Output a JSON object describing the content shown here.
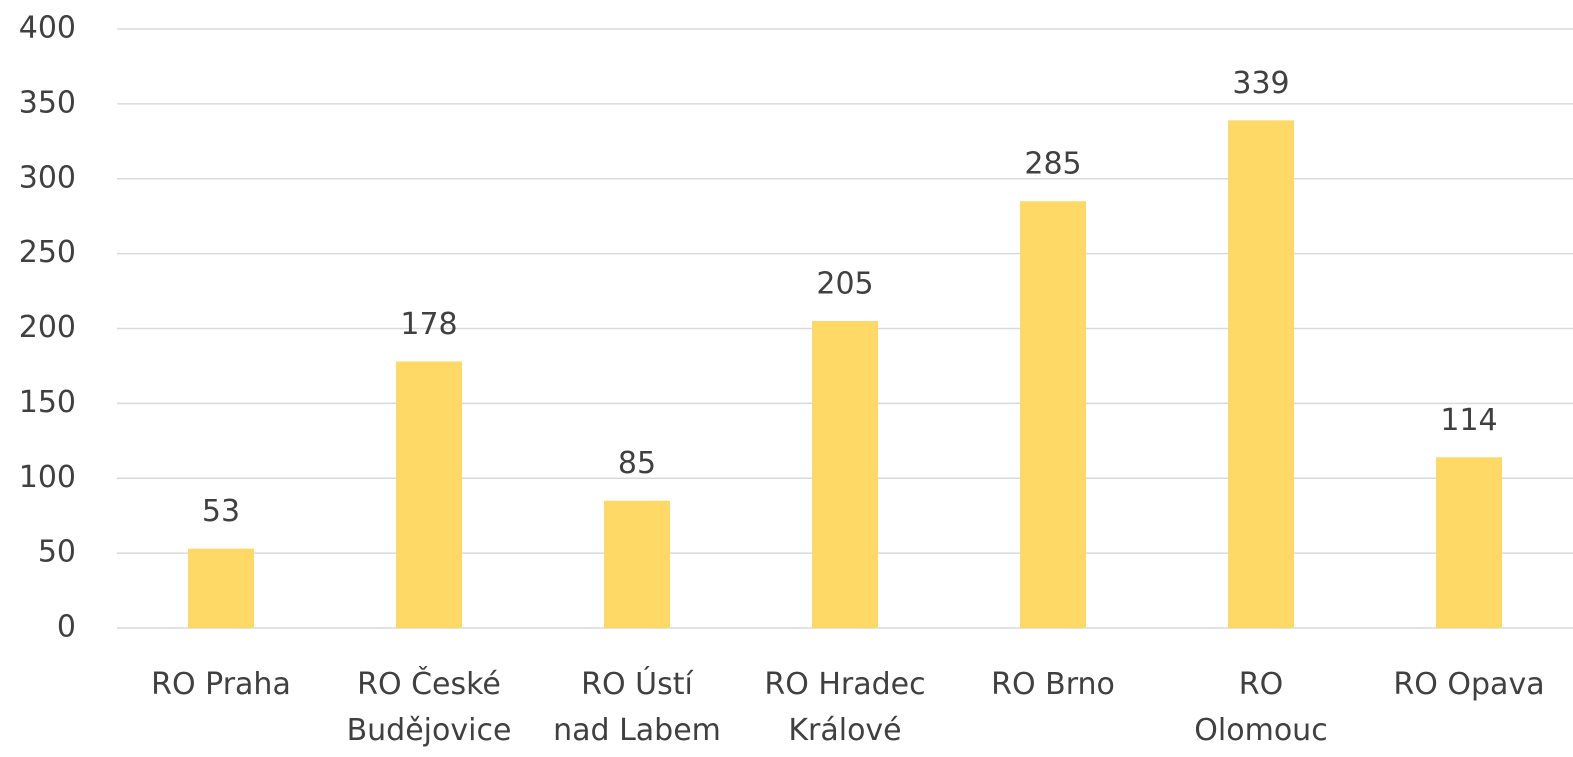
{
  "chart_data": {
    "type": "bar",
    "categories": [
      "RO Praha",
      "RO České\nBudějovice",
      "RO Ústí\nnad Labem",
      "RO Hradec\nKrálové",
      "RO Brno",
      "RO\nOlomouc",
      "RO Opava"
    ],
    "values": [
      53,
      178,
      85,
      205,
      285,
      339,
      114
    ],
    "color": "#ffd966",
    "ylim": [
      0,
      400
    ],
    "yticks": [
      0,
      50,
      100,
      150,
      200,
      250,
      300,
      350,
      400
    ],
    "grid": true
  }
}
